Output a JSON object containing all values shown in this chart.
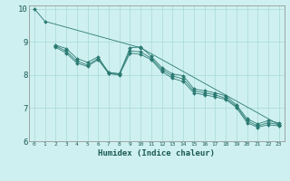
{
  "title": "",
  "xlabel": "Humidex (Indice chaleur)",
  "ylabel": "",
  "background_color": "#cff0f0",
  "grid_color": "#a8d8d8",
  "line_color": "#2a7a72",
  "marker_color": "#2a7a72",
  "xlim": [
    -0.5,
    23.5
  ],
  "ylim": [
    6,
    10.1
  ],
  "yticks": [
    6,
    7,
    8,
    9,
    10
  ],
  "xticks": [
    0,
    1,
    2,
    3,
    4,
    5,
    6,
    7,
    8,
    9,
    10,
    11,
    12,
    13,
    14,
    15,
    16,
    17,
    18,
    19,
    20,
    21,
    22,
    23
  ],
  "lines": [
    {
      "x": [
        0,
        1,
        10,
        23
      ],
      "y": [
        10.0,
        9.62,
        8.82,
        6.5
      ]
    },
    {
      "x": [
        2,
        3,
        4,
        5,
        6,
        7,
        8,
        9,
        10,
        11,
        12,
        13,
        14,
        15,
        16,
        17,
        18,
        19,
        20,
        21,
        22,
        23
      ],
      "y": [
        8.9,
        8.8,
        8.5,
        8.38,
        8.55,
        8.05,
        8.02,
        8.82,
        8.85,
        8.56,
        8.22,
        8.03,
        7.98,
        7.58,
        7.52,
        7.46,
        7.37,
        7.1,
        6.68,
        6.52,
        6.62,
        6.55
      ]
    },
    {
      "x": [
        2,
        3,
        4,
        5,
        6,
        7,
        8,
        9,
        10,
        11,
        12,
        13,
        14,
        15,
        16,
        17,
        18,
        19,
        20,
        21,
        22,
        23
      ],
      "y": [
        8.88,
        8.72,
        8.42,
        8.3,
        8.5,
        8.08,
        8.04,
        8.72,
        8.7,
        8.5,
        8.16,
        7.97,
        7.88,
        7.52,
        7.46,
        7.4,
        7.3,
        7.06,
        6.62,
        6.46,
        6.56,
        6.5
      ]
    },
    {
      "x": [
        2,
        3,
        4,
        5,
        6,
        7,
        8,
        9,
        10,
        11,
        12,
        13,
        14,
        15,
        16,
        17,
        18,
        19,
        20,
        21,
        22,
        23
      ],
      "y": [
        8.84,
        8.66,
        8.36,
        8.26,
        8.46,
        8.04,
        8.0,
        8.66,
        8.62,
        8.46,
        8.1,
        7.9,
        7.8,
        7.46,
        7.4,
        7.34,
        7.26,
        7.02,
        6.56,
        6.42,
        6.5,
        6.46
      ]
    }
  ]
}
